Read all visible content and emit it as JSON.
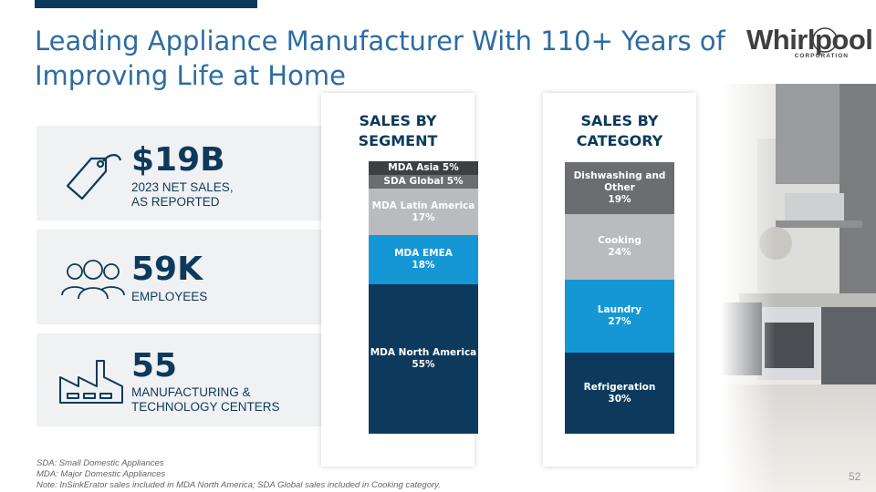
{
  "slide": {
    "title_line1": "Leading Appliance Manufacturer With 110+ Years of",
    "title_line2": "Improving Life at Home",
    "page_number": "52"
  },
  "logo": {
    "word": "Whirlpool",
    "sub": "CORPORATION"
  },
  "kpis": [
    {
      "value": "$19B",
      "label": "2023 NET SALES,\nAS REPORTED",
      "icon": "price-tag-icon"
    },
    {
      "value": "59K",
      "label": "EMPLOYEES",
      "icon": "people-icon"
    },
    {
      "value": "55",
      "label": "MANUFACTURING &\nTECHNOLOGY CENTERS",
      "icon": "factory-icon"
    }
  ],
  "chart_data": [
    {
      "type": "bar",
      "stacked": true,
      "title": "SALES BY\nSEGMENT",
      "unit": "%",
      "segments": [
        {
          "name": "MDA North America",
          "value": 55,
          "color": "#0d3a5c"
        },
        {
          "name": "MDA EMEA",
          "value": 18,
          "color": "#1597d6"
        },
        {
          "name": "MDA Latin America",
          "value": 17,
          "color": "#b9bbbf"
        },
        {
          "name": "SDA Global",
          "value": 5,
          "color": "#6b6d70"
        },
        {
          "name": "MDA Asia",
          "value": 5,
          "color": "#3d3f42"
        }
      ]
    },
    {
      "type": "bar",
      "stacked": true,
      "title": "SALES BY\nCATEGORY",
      "unit": "%",
      "segments": [
        {
          "name": "Refrigeration",
          "value": 30,
          "color": "#0d3a5c"
        },
        {
          "name": "Laundry",
          "value": 27,
          "color": "#1597d6"
        },
        {
          "name": "Cooking",
          "value": 24,
          "color": "#b9bbbf"
        },
        {
          "name": "Dishwashing and Other",
          "value": 19,
          "color": "#6b6d70"
        }
      ]
    }
  ],
  "footnotes": [
    "SDA: Small Domestic Appliances",
    "MDA: Major Domestic Appliances",
    "Note: InSinkErator sales included in MDA North America; SDA Global sales included in Cooking category."
  ]
}
